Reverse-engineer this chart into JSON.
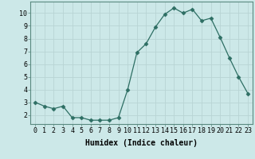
{
  "x": [
    0,
    1,
    2,
    3,
    4,
    5,
    6,
    7,
    8,
    9,
    10,
    11,
    12,
    13,
    14,
    15,
    16,
    17,
    18,
    19,
    20,
    21,
    22,
    23
  ],
  "y": [
    3.0,
    2.7,
    2.5,
    2.7,
    1.8,
    1.8,
    1.6,
    1.6,
    1.6,
    1.8,
    4.0,
    6.9,
    7.6,
    8.9,
    9.9,
    10.4,
    10.0,
    10.3,
    9.4,
    9.6,
    8.1,
    6.5,
    5.0,
    3.7
  ],
  "xlabel": "Humidex (Indice chaleur)",
  "xlim": [
    -0.5,
    23.5
  ],
  "ylim": [
    1.3,
    10.9
  ],
  "yticks": [
    2,
    3,
    4,
    5,
    6,
    7,
    8,
    9,
    10
  ],
  "xticks": [
    0,
    1,
    2,
    3,
    4,
    5,
    6,
    7,
    8,
    9,
    10,
    11,
    12,
    13,
    14,
    15,
    16,
    17,
    18,
    19,
    20,
    21,
    22,
    23
  ],
  "line_color": "#2d6e63",
  "marker": "D",
  "marker_size": 2.5,
  "bg_color": "#cce8e8",
  "grid_color": "#b8d4d4",
  "axis_label_fontsize": 7,
  "tick_fontsize": 6
}
